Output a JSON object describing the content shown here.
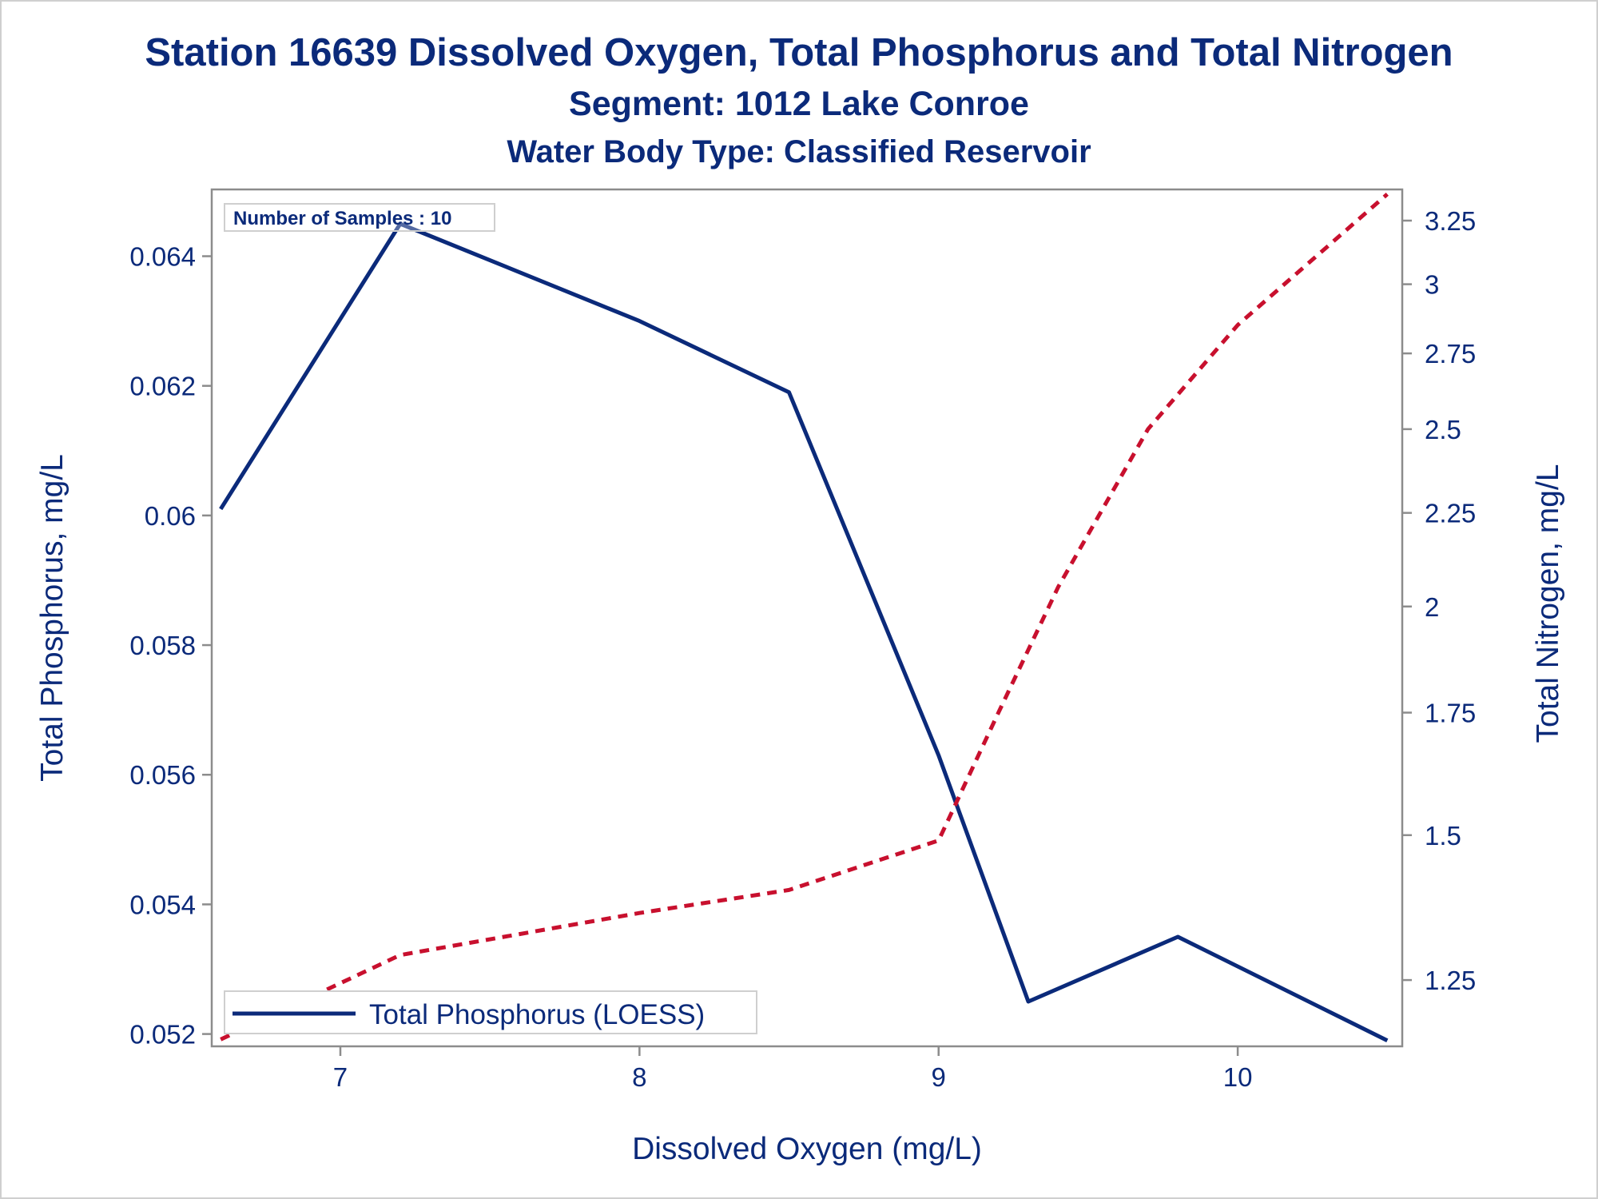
{
  "chart_data": {
    "type": "line",
    "title": "Station 16639  Dissolved Oxygen, Total Phosphorus and Total Nitrogen",
    "subtitle": "Segment: 1012  Lake Conroe",
    "subtitle2": "Water Body Type: Classified Reservoir",
    "xlabel": "Dissolved Oxygen (mg/L)",
    "ylabel": "Total Phosphorus, mg/L",
    "y2label": "Total Nitrogen, mg/L",
    "xlim": [
      6.57,
      10.55
    ],
    "ylim": [
      0.05181,
      0.06503
    ],
    "y2lim": [
      1.15,
      3.38
    ],
    "y2scale": "log",
    "xticks": [
      7,
      8,
      9,
      10
    ],
    "yticks": [
      0.052,
      0.054,
      0.056,
      0.058,
      0.06,
      0.062,
      0.064
    ],
    "ytick_labels": [
      "0.052",
      "0.054",
      "0.056",
      "0.058",
      "0.06",
      "0.062",
      "0.064"
    ],
    "y2ticks": [
      1.25,
      1.5,
      1.75,
      2,
      2.25,
      2.5,
      2.75,
      3,
      3.25
    ],
    "y2tick_labels": [
      "1.25",
      "1.5",
      "1.75",
      "2",
      "2.25",
      "2.5",
      "2.75",
      "3",
      "3.25"
    ],
    "annotation": "Number of Samples : 10",
    "legend_position": "bottom-left",
    "grid": false,
    "series": [
      {
        "name": "Total Phosphorus (LOESS)",
        "axis": "left",
        "color": "#0b2a7a",
        "style": "solid",
        "x": [
          6.6,
          7.2,
          8.0,
          8.5,
          9.0,
          9.3,
          9.8,
          10.5
        ],
        "y": [
          0.0601,
          0.0645,
          0.063,
          0.0619,
          0.0563,
          0.0525,
          0.0535,
          0.0519
        ]
      },
      {
        "axis": "right",
        "color": "#c8102e",
        "style": "dashed",
        "x": [
          6.6,
          7.2,
          8.0,
          8.5,
          9.0,
          9.2,
          9.4,
          9.7,
          10.0,
          10.5
        ],
        "y": [
          1.16,
          1.29,
          1.36,
          1.4,
          1.49,
          1.75,
          2.05,
          2.5,
          2.85,
          3.36
        ]
      }
    ]
  }
}
